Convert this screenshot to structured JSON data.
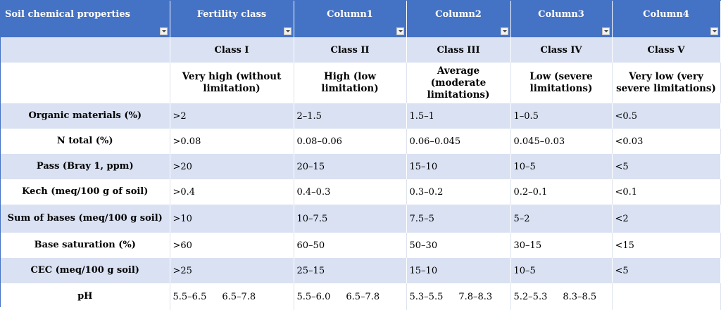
{
  "headers": [
    "Soil chemical properties",
    "Fertility class",
    "Column1",
    "Column2",
    "Column3",
    "Column4"
  ],
  "classes": [
    "Class I",
    "Class II",
    "Class III",
    "Class IV",
    "Class V"
  ],
  "descriptions": [
    "Very high (without limitation)",
    "High (low limitation)",
    "Average (moderate limitations)",
    "Low (severe limitations)",
    "Very low (very severe limitations)"
  ],
  "rows": [
    {
      "label": "Organic materials (%)",
      "values": [
        ">2",
        "2–1.5",
        "1.5–1",
        "1–0.5",
        "<0.5"
      ]
    },
    {
      "label": "N total (%)",
      "values": [
        ">0.08",
        "0.08–0.06",
        "0.06–0.045",
        "0.045–0.03",
        "<0.03"
      ]
    },
    {
      "label": "Pass (Bray 1, ppm)",
      "values": [
        ">20",
        "20–15",
        "15–10",
        "10–5",
        "<5"
      ]
    },
    {
      "label": "Kech (meq/100 g of soil)",
      "values": [
        ">0.4",
        "0.4–0.3",
        "0.3–0.2",
        "0.2–0.1",
        "<0.1"
      ]
    },
    {
      "label": "Sum of bases (meq/100 g soil)",
      "values": [
        ">10",
        "10–7.5",
        "7.5–5",
        "5–2",
        "<2"
      ]
    },
    {
      "label": "Base saturation (%)",
      "values": [
        ">60",
        "60–50",
        "50–30",
        "30–15",
        "<15"
      ]
    },
    {
      "label": "CEC (meq/100 g soil)",
      "values": [
        ">25",
        "25–15",
        "15–10",
        "10–5",
        "<5"
      ]
    }
  ],
  "ph_row": {
    "label": "pH",
    "values": [
      [
        "5.5–6.5",
        "6.5–7.8"
      ],
      [
        "5.5–6.0",
        "6.5–7.8"
      ],
      [
        "5.3–5.5",
        "7.8–8.3"
      ],
      [
        "5.2–5.3",
        "8.3–8.5"
      ],
      []
    ]
  }
}
